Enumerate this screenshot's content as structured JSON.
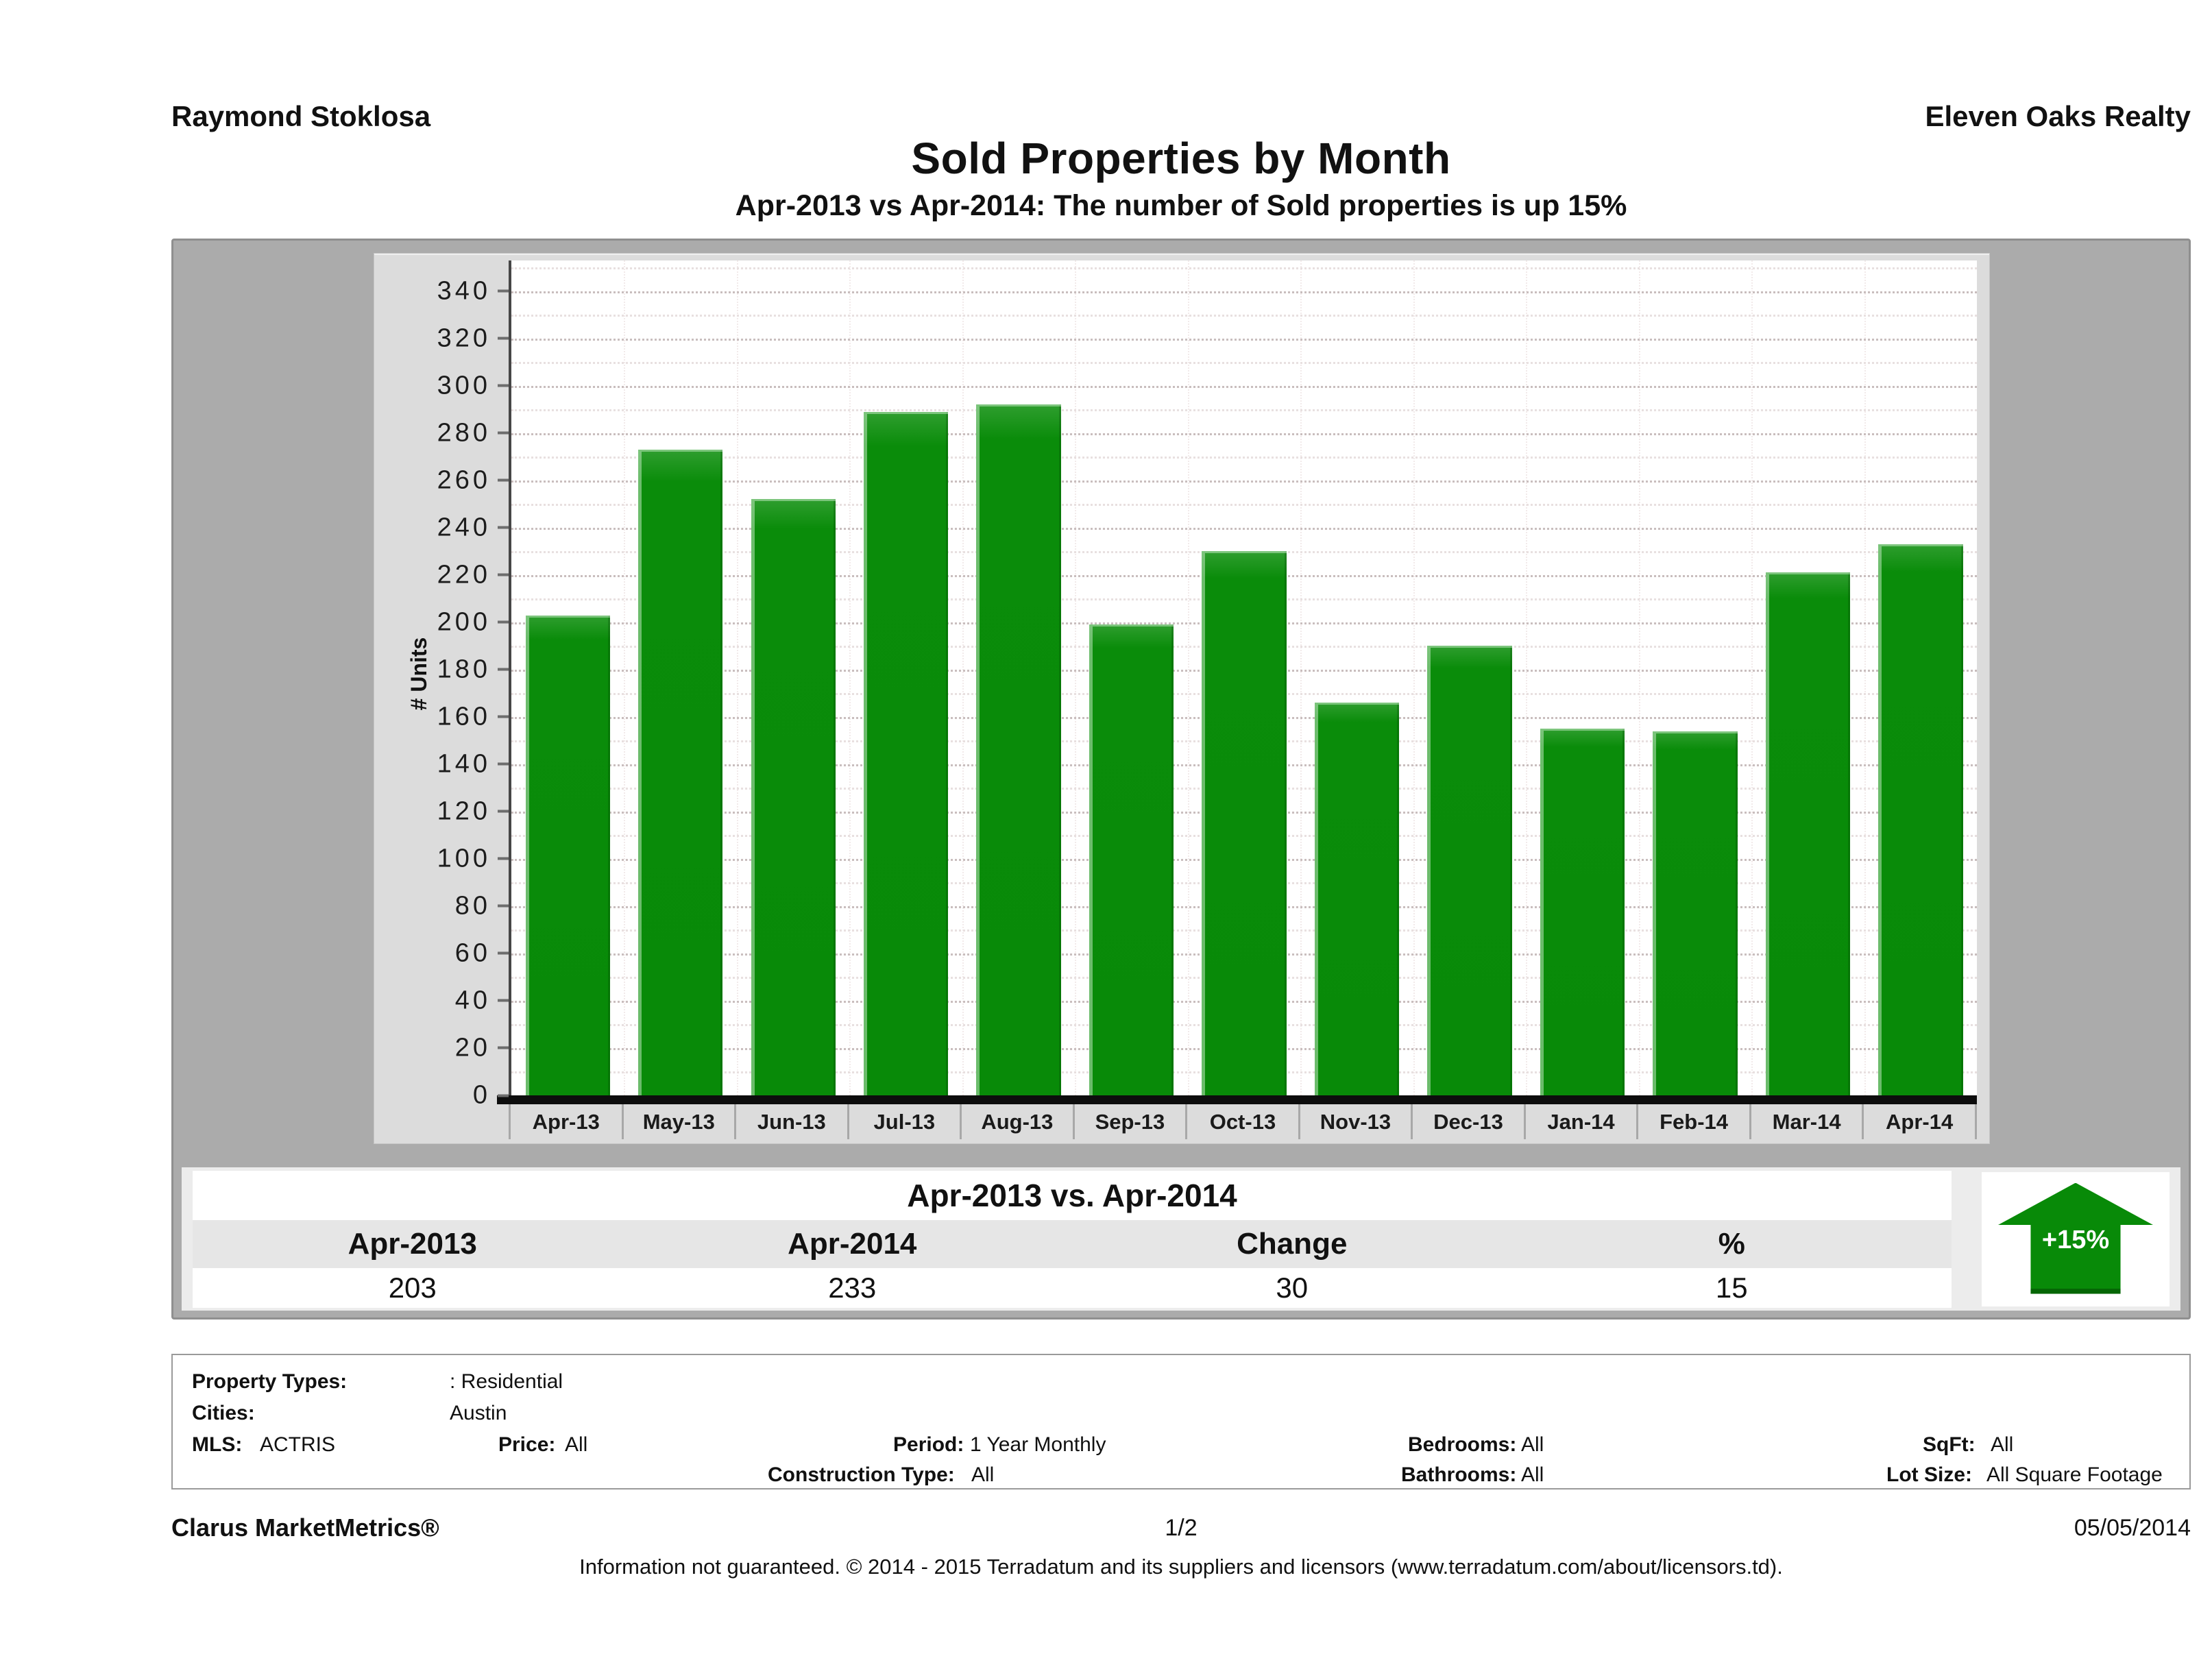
{
  "header": {
    "agent_name": "Raymond Stoklosa",
    "company_name": "Eleven Oaks Realty"
  },
  "title": "Sold Properties by Month",
  "subtitle": "Apr-2013 vs Apr-2014: The number of Sold  properties is up 15%",
  "chart_data": {
    "type": "bar",
    "title": "Sold Properties by Month",
    "xlabel": "",
    "ylabel": "# Units",
    "categories": [
      "Apr-13",
      "May-13",
      "Jun-13",
      "Jul-13",
      "Aug-13",
      "Sep-13",
      "Oct-13",
      "Nov-13",
      "Dec-13",
      "Jan-14",
      "Feb-14",
      "Mar-14",
      "Apr-14"
    ],
    "values": [
      203,
      273,
      252,
      289,
      292,
      199,
      230,
      166,
      190,
      155,
      154,
      221,
      233
    ],
    "ylim": [
      0,
      353
    ],
    "yticks": [
      0,
      20,
      40,
      60,
      80,
      100,
      120,
      140,
      160,
      180,
      200,
      220,
      240,
      260,
      280,
      300,
      320,
      340
    ],
    "ytick_step": 20,
    "grid": "dotted horizontal, minor every 10",
    "legend": "none",
    "bar_color": "#088a08"
  },
  "summary_table": {
    "title": "Apr-2013 vs. Apr-2014",
    "headers": [
      "Apr-2013",
      "Apr-2014",
      "Change",
      "%"
    ],
    "values": [
      "203",
      "233",
      "30",
      "15"
    ],
    "badge": "+15%",
    "badge_icon": "up-arrow-icon"
  },
  "filters": {
    "property_types_label": "Property Types:",
    "property_types": ": Residential",
    "cities_label": "Cities:",
    "cities": "Austin",
    "mls_label": "MLS:",
    "mls": "ACTRIS",
    "price_label": "Price:",
    "price": "All",
    "period_label": "Period:",
    "period": "1 Year Monthly",
    "bedrooms_label": "Bedrooms:",
    "bedrooms": "All",
    "sqft_label": "SqFt:",
    "sqft": "All",
    "construction_label": "Construction Type:",
    "construction": "All",
    "bathrooms_label": "Bathrooms:",
    "bathrooms": "All",
    "lot_size_label": "Lot Size:",
    "lot_size": "All Square Footage"
  },
  "footer": {
    "brand": "Clarus MarketMetrics®",
    "page": "1/2",
    "date": "05/05/2014",
    "disclaimer": "Information not guaranteed. © 2014 - 2015 Terradatum and its suppliers and licensors (www.terradatum.com/about/licensors.td)."
  },
  "colors": {
    "bar_green": "#088a08",
    "container_gray": "#ababab",
    "panel_gray": "#dcdcdc",
    "band_gray": "#ececec",
    "table_header_gray": "#e6e6e6"
  }
}
